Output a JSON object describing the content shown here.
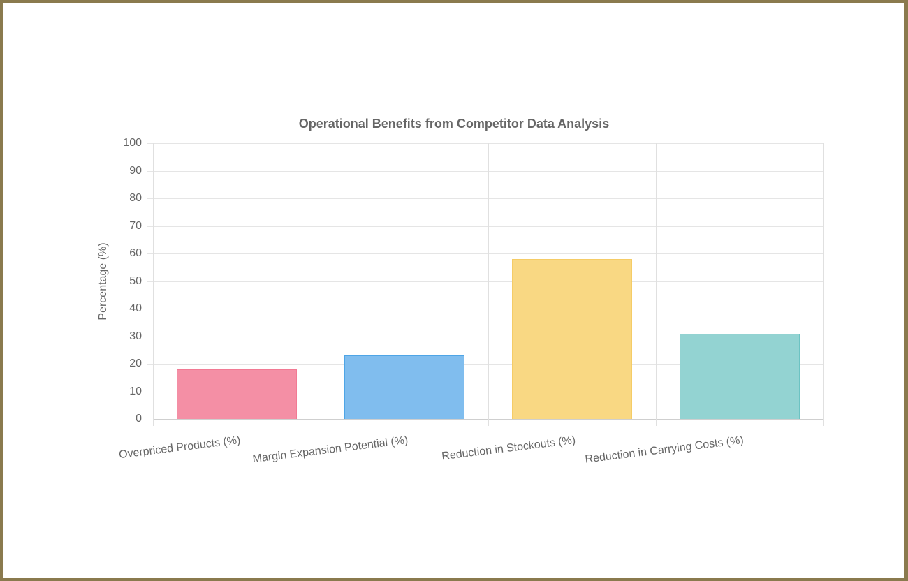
{
  "chart_data": {
    "type": "bar",
    "title": "Operational Benefits from Competitor Data Analysis",
    "xlabel": "",
    "ylabel": "Percentage (%)",
    "ylim": [
      0,
      100
    ],
    "yticks": [
      "0",
      "10",
      "20",
      "30",
      "40",
      "50",
      "60",
      "70",
      "80",
      "90",
      "100"
    ],
    "categories": [
      "Overpriced Products (%)",
      "Margin Expansion Potential (%)",
      "Reduction in Stockouts (%)",
      "Reduction in Carrying Costs (%)"
    ],
    "values": [
      18,
      23,
      58,
      31
    ],
    "colors": [
      "#f48fa5",
      "#80bdee",
      "#f9d883",
      "#93d3d2"
    ],
    "border_colors": [
      "#f27a94",
      "#4ea5e6",
      "#f5cc66",
      "#6cc3c3"
    ],
    "grid": true,
    "legend": "none"
  }
}
